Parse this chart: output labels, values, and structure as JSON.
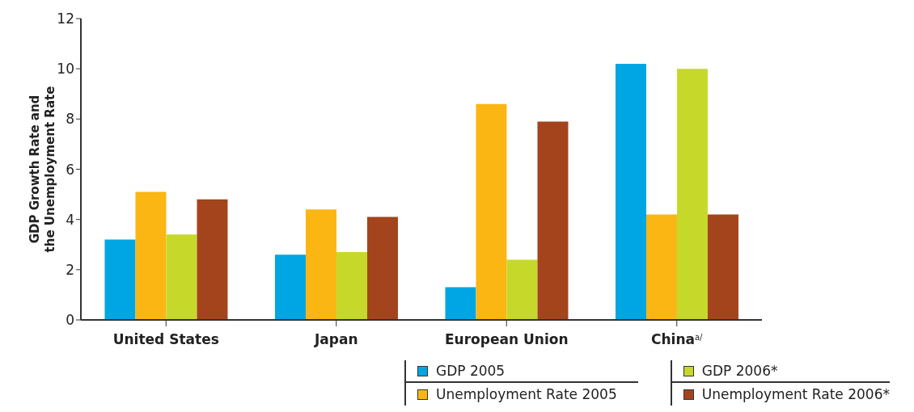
{
  "chart_data": {
    "type": "bar",
    "ylabel": "GDP Growth Rate and\nthe Unemployment Rate",
    "categories": [
      "United States",
      "Japan",
      "European Union",
      "China$^{a/}$"
    ],
    "series": [
      {
        "name": "GDP 2005",
        "color": "#00a6e4",
        "values": [
          3.2,
          2.6,
          1.3,
          10.2
        ]
      },
      {
        "name": "Unemployment Rate 2005",
        "color": "#fbb614",
        "values": [
          5.1,
          4.4,
          8.6,
          4.2
        ]
      },
      {
        "name": "GDP 2006*",
        "color": "#c6d92b",
        "values": [
          3.4,
          2.7,
          2.4,
          10.0
        ]
      },
      {
        "name": "Unemployment Rate 2006*",
        "color": "#a4441c",
        "values": [
          4.8,
          4.1,
          7.9,
          4.2
        ]
      }
    ],
    "ylim": [
      0,
      12
    ],
    "yticks": [
      0,
      2,
      4,
      6,
      8,
      10,
      12
    ],
    "legend": "bottom"
  }
}
